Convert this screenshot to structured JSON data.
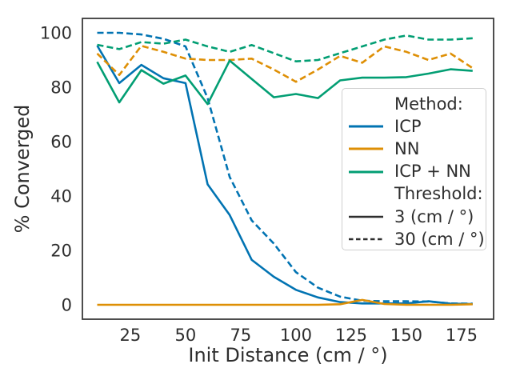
{
  "chart_data": {
    "type": "line",
    "title": "",
    "xlabel": "Init Distance (cm / °)",
    "ylabel": "% Converged",
    "grid": false,
    "legend_position": "center right",
    "xlim": [
      3.3,
      189.5
    ],
    "ylim": [
      -5.3,
      105.3
    ],
    "xticks": [
      25,
      50,
      75,
      100,
      125,
      150,
      175
    ],
    "yticks": [
      0,
      20,
      40,
      60,
      80,
      100
    ],
    "x": [
      10,
      20,
      30,
      40,
      50,
      60,
      70,
      80,
      90,
      100,
      110,
      120,
      130,
      140,
      150,
      160,
      170,
      180
    ],
    "series": [
      {
        "method": "ICP",
        "threshold": "3",
        "color": "#0173b2",
        "dash": "solid",
        "values": [
          95.3,
          81.5,
          88.2,
          83.3,
          81.5,
          44.3,
          33,
          16.5,
          10.3,
          5.5,
          2.7,
          1,
          0.5,
          0.5,
          0.5,
          1.3,
          0.4,
          0.3
        ]
      },
      {
        "method": "ICP",
        "threshold": "30",
        "color": "#0173b2",
        "dash": "dashed",
        "values": [
          100,
          100,
          99.4,
          97.8,
          95,
          76,
          47,
          31,
          22.5,
          12,
          6.3,
          3,
          1.5,
          1.3,
          1.3,
          1.2,
          0.5,
          0.4
        ]
      },
      {
        "method": "NN",
        "threshold": "3",
        "color": "#de8f05",
        "dash": "solid",
        "values": [
          0,
          0,
          0,
          0,
          0,
          0,
          0,
          0,
          0,
          0,
          0,
          0.2,
          1.8,
          0.3,
          0,
          0,
          0,
          0.2
        ]
      },
      {
        "method": "NN",
        "threshold": "30",
        "color": "#de8f05",
        "dash": "dashed",
        "values": [
          92.4,
          84.5,
          95.2,
          93,
          90.5,
          90,
          90,
          90.5,
          86.5,
          82,
          86.5,
          91.5,
          89,
          95,
          93,
          90,
          92.4,
          87
        ]
      },
      {
        "method": "ICP + NN",
        "threshold": "3",
        "color": "#029e73",
        "dash": "solid",
        "values": [
          89.3,
          74.4,
          86.3,
          81.3,
          84.3,
          73.8,
          89.8,
          83,
          76.3,
          77.5,
          76,
          82.5,
          83.5,
          83.5,
          83.7,
          85,
          86.6,
          86
        ]
      },
      {
        "method": "ICP + NN",
        "threshold": "30",
        "color": "#029e73",
        "dash": "dashed",
        "values": [
          95.6,
          94,
          96.6,
          96,
          97.5,
          95,
          93,
          95.5,
          92.5,
          89.5,
          90,
          92.5,
          95,
          97.5,
          99,
          97.5,
          97.5,
          98
        ]
      }
    ],
    "legend": {
      "method_title": "Method:",
      "methods": [
        {
          "label": "ICP",
          "color": "#0173b2"
        },
        {
          "label": "NN",
          "color": "#de8f05"
        },
        {
          "label": "ICP + NN",
          "color": "#029e73"
        }
      ],
      "threshold_title": "Threshold:",
      "thresholds": [
        {
          "label": "3 (cm / °)",
          "dash": "solid"
        },
        {
          "label": "30 (cm / °)",
          "dash": "dashed"
        }
      ],
      "threshold_sample_color": "#2e2e2e"
    }
  }
}
